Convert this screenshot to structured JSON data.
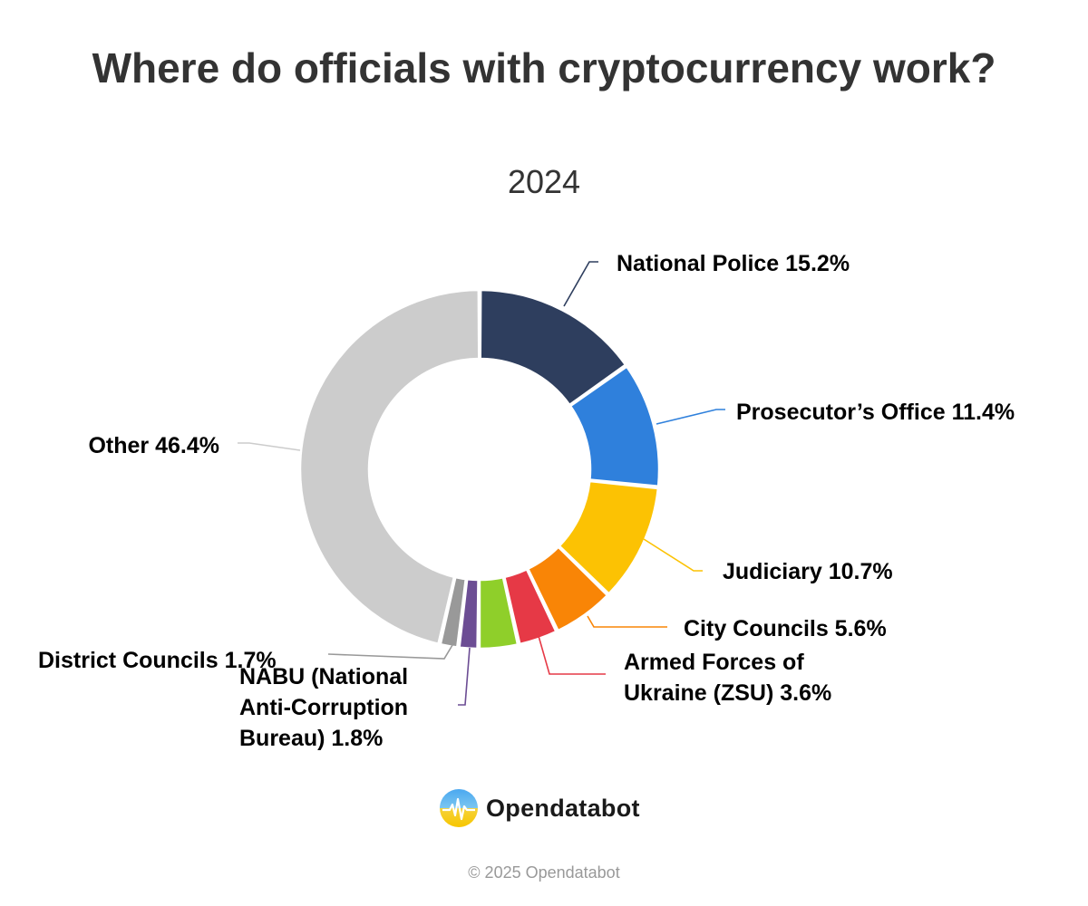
{
  "chart_data": {
    "type": "pie",
    "variant": "donut",
    "title": "Where do officials with cryptocurrency work?",
    "subtitle": "2024",
    "slices": [
      {
        "name": "National Police",
        "value": 15.2,
        "label": "National Police 15.2%",
        "color": "#2e3e5e"
      },
      {
        "name": "Prosecutor’s Office",
        "value": 11.4,
        "label": "Prosecutor’s Office 11.4%",
        "color": "#2f80dc"
      },
      {
        "name": "Judiciary",
        "value": 10.7,
        "label": "Judiciary 10.7%",
        "color": "#fcc203"
      },
      {
        "name": "City Councils",
        "value": 5.6,
        "label": "City Councils 5.6%",
        "color": "#f98506"
      },
      {
        "name": "Armed Forces of Ukraine (ZSU)",
        "value": 3.6,
        "label": "Armed Forces of Ukraine (ZSU) 3.6%",
        "color": "#e63946"
      },
      {
        "name": "",
        "value": 3.6,
        "label": "",
        "color": "#8fcf2a"
      },
      {
        "name": "NABU (National Anti-Corruption Bureau)",
        "value": 1.8,
        "label": "NABU (National Anti-Corruption Bureau) 1.8%",
        "color": "#6c4d94"
      },
      {
        "name": "District Councils",
        "value": 1.7,
        "label": "District Councils 1.7%",
        "color": "#999999"
      },
      {
        "name": "Other",
        "value": 46.4,
        "label": "Other 46.4%",
        "color": "#cccccc"
      }
    ]
  },
  "brand": {
    "name": "Opendatabot",
    "icon": "opendatabot-logo-icon"
  },
  "footer": {
    "copyright": "© 2025 Opendatabot"
  }
}
